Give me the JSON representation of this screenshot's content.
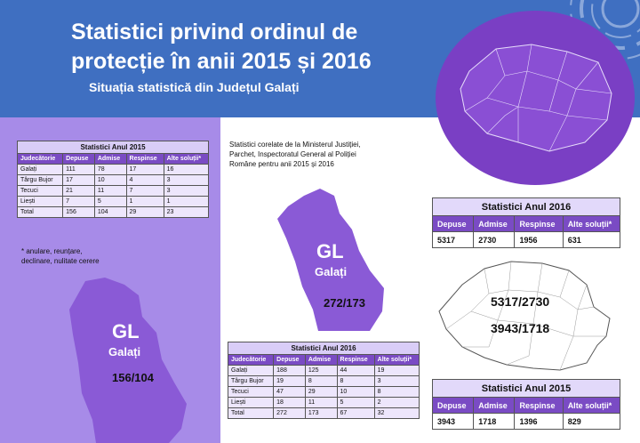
{
  "header": {
    "title_line1": "Statistici privind ordinul de",
    "title_line2": "protecție în anii 2015 și 2016",
    "subtitle": "Situația statistică din Județul Galați"
  },
  "colors": {
    "banner": "#3f6fc1",
    "purple_panel": "#a78be8",
    "header_row": "#7a4bc4",
    "county_shape": "#8a5ad6"
  },
  "table_2015_left": {
    "title": "Statistici Anul 2015",
    "columns": [
      "Judecătorie",
      "Depuse",
      "Admise",
      "Respinse",
      "Alte soluții*"
    ],
    "rows": [
      [
        "Galați",
        "111",
        "78",
        "17",
        "16"
      ],
      [
        "Târgu Bujor",
        "17",
        "10",
        "4",
        "3"
      ],
      [
        "Tecuci",
        "21",
        "11",
        "7",
        "3"
      ],
      [
        "Liești",
        "7",
        "5",
        "1",
        "1"
      ],
      [
        "Total",
        "156",
        "104",
        "29",
        "23"
      ]
    ]
  },
  "footnote": "* anulare, reunțare, declinare, nulitate cerere",
  "mid_text": "Statistici corelate de la Ministerul Justiției, Parchet, Inspectoratul General al Poliției Române pentru anii 2015 și 2016",
  "county_left": {
    "code": "GL",
    "name": "Galați",
    "ratio": "156/104"
  },
  "county_mid": {
    "code": "GL",
    "name": "Galați",
    "ratio": "272/173"
  },
  "table_2016_mid": {
    "title": "Statistici Anul 2016",
    "columns": [
      "Judecătorie",
      "Depuse",
      "Admise",
      "Respinse",
      "Alte soluții*"
    ],
    "rows": [
      [
        "Galați",
        "188",
        "125",
        "44",
        "19"
      ],
      [
        "Târgu Bujor",
        "19",
        "8",
        "8",
        "3"
      ],
      [
        "Tecuci",
        "47",
        "29",
        "10",
        "8"
      ],
      [
        "Liești",
        "18",
        "11",
        "5",
        "2"
      ],
      [
        "Total",
        "272",
        "173",
        "67",
        "32"
      ]
    ]
  },
  "table_2016_right": {
    "title": "Statistici Anul 2016",
    "columns": [
      "Depuse",
      "Admise",
      "Respinse",
      "Alte soluții*"
    ],
    "values": [
      "5317",
      "2730",
      "1956",
      "631"
    ]
  },
  "table_2015_right": {
    "title": "Statistici Anul 2015",
    "columns": [
      "Depuse",
      "Admise",
      "Respinse",
      "Alte soluții*"
    ],
    "values": [
      "3943",
      "1718",
      "1396",
      "829"
    ]
  },
  "romania_map": {
    "ratio_2016": "5317/2730",
    "ratio_2015": "3943/1718"
  }
}
